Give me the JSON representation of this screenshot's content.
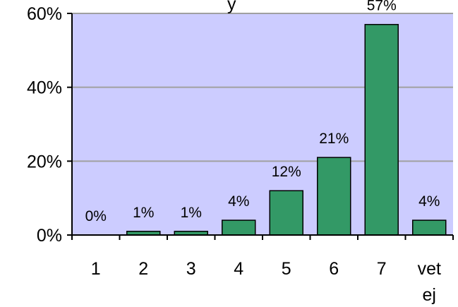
{
  "chart_data": {
    "type": "bar",
    "title_fragment": "y",
    "categories": [
      "1",
      "2",
      "3",
      "4",
      "5",
      "6",
      "7",
      "vet ej"
    ],
    "category_lines": [
      [
        "1"
      ],
      [
        "2"
      ],
      [
        "3"
      ],
      [
        "4"
      ],
      [
        "5"
      ],
      [
        "6"
      ],
      [
        "7"
      ],
      [
        "vet",
        "ej"
      ]
    ],
    "values": [
      0,
      1,
      1,
      4,
      12,
      21,
      57,
      4
    ],
    "data_labels": [
      "0%",
      "1%",
      "1%",
      "4%",
      "12%",
      "21%",
      "57%",
      "4%"
    ],
    "y_ticks": [
      0,
      20,
      40,
      60
    ],
    "y_tick_labels": [
      "0%",
      "20%",
      "40%",
      "60%"
    ],
    "ylim": [
      0,
      60
    ],
    "grid": true,
    "colors": {
      "plot_background": "#ccccff",
      "bar_fill": "#339966",
      "bar_stroke": "#000000",
      "gridline": "#a0a0a0"
    }
  }
}
